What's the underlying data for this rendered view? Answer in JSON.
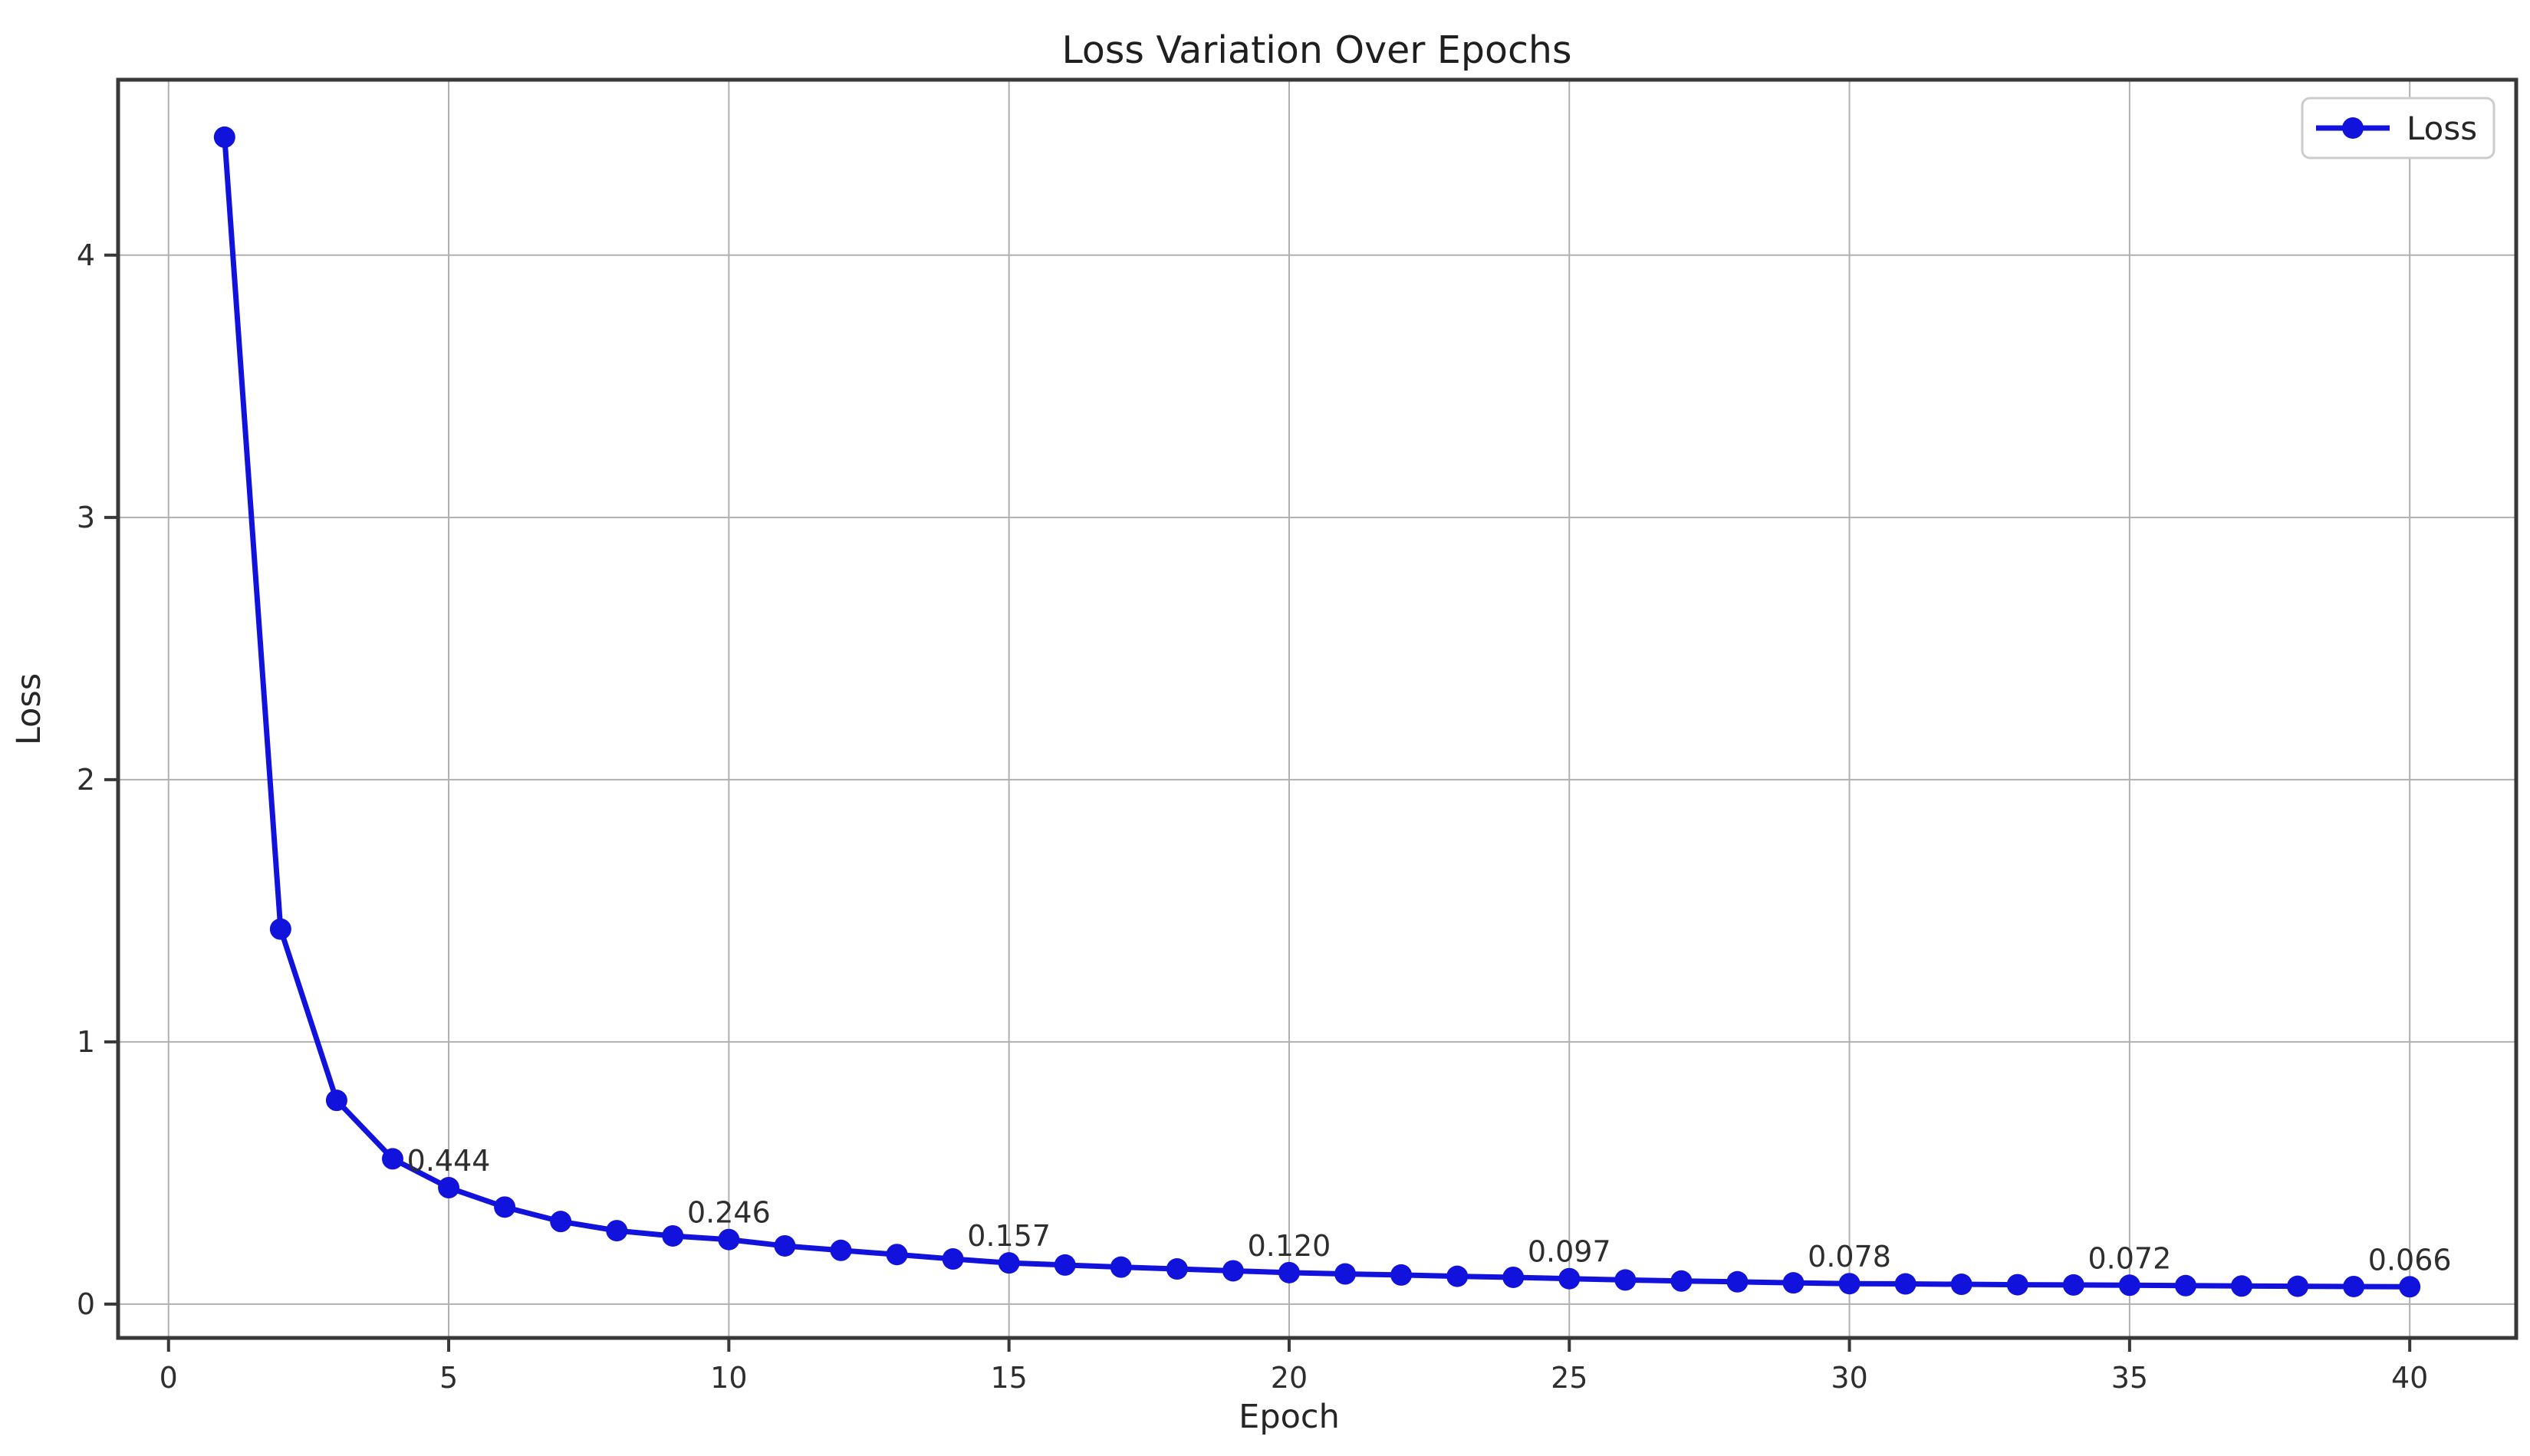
{
  "figure": {
    "background": "#ffffff"
  },
  "chart_data": {
    "type": "line",
    "title": "Loss Variation Over Epochs",
    "xlabel": "Epoch",
    "ylabel": "Loss",
    "grid": true,
    "legend": {
      "position": "upper right",
      "entries": [
        {
          "label": "Loss",
          "color": "#1212dd",
          "marker": "circle"
        }
      ]
    },
    "xlim": [
      -0.9,
      41.9
    ],
    "ylim": [
      -0.129,
      4.669
    ],
    "xticks": [
      0,
      5,
      10,
      15,
      20,
      25,
      30,
      35,
      40
    ],
    "yticks": [
      0,
      1,
      2,
      3,
      4
    ],
    "series": [
      {
        "name": "Loss",
        "color": "#1212dd",
        "marker": "circle",
        "x": [
          1,
          2,
          3,
          4,
          5,
          6,
          7,
          8,
          9,
          10,
          11,
          12,
          13,
          14,
          15,
          16,
          17,
          18,
          19,
          20,
          21,
          22,
          23,
          24,
          25,
          26,
          27,
          28,
          29,
          30,
          31,
          32,
          33,
          34,
          35,
          36,
          37,
          38,
          39,
          40
        ],
        "y": [
          4.45,
          1.43,
          0.777,
          0.554,
          0.444,
          0.37,
          0.315,
          0.28,
          0.26,
          0.246,
          0.222,
          0.205,
          0.189,
          0.172,
          0.157,
          0.149,
          0.141,
          0.134,
          0.127,
          0.12,
          0.115,
          0.111,
          0.106,
          0.102,
          0.097,
          0.092,
          0.088,
          0.085,
          0.081,
          0.078,
          0.077,
          0.0755,
          0.074,
          0.073,
          0.072,
          0.0705,
          0.069,
          0.068,
          0.067,
          0.066
        ]
      }
    ],
    "annotations": [
      {
        "x": 5,
        "y": 0.444,
        "label": "0.444"
      },
      {
        "x": 10,
        "y": 0.246,
        "label": "0.246"
      },
      {
        "x": 15,
        "y": 0.157,
        "label": "0.157"
      },
      {
        "x": 20,
        "y": 0.12,
        "label": "0.120"
      },
      {
        "x": 25,
        "y": 0.097,
        "label": "0.097"
      },
      {
        "x": 30,
        "y": 0.078,
        "label": "0.078"
      },
      {
        "x": 35,
        "y": 0.072,
        "label": "0.072"
      },
      {
        "x": 40,
        "y": 0.066,
        "label": "0.066"
      }
    ],
    "colors": {
      "line": "#1212dd",
      "grid": "#b0b0b0",
      "spine": "#383838",
      "text": "#2e2e2e",
      "legend_border": "#cccccc",
      "background": "#ffffff"
    }
  }
}
